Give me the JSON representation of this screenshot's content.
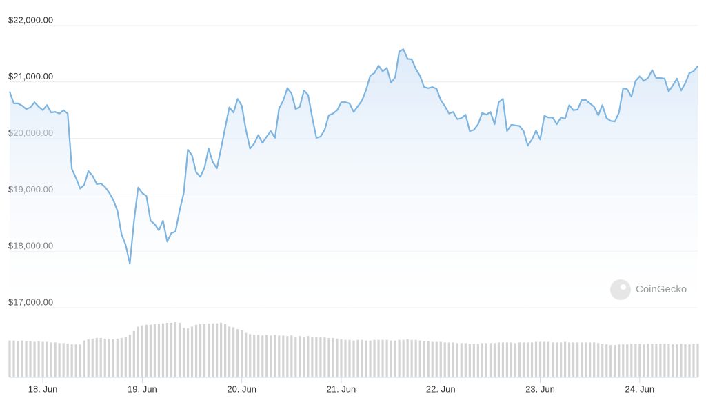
{
  "chart_data": {
    "type": "line",
    "watermark": "CoinGecko",
    "categories": [
      null,
      null,
      null,
      null,
      null,
      null,
      null,
      null,
      "18. Jun",
      null,
      null,
      null,
      null,
      null,
      null,
      null,
      null,
      null,
      null,
      null,
      null,
      null,
      null,
      null,
      null,
      null,
      null,
      null,
      null,
      null,
      null,
      null,
      "19. Jun",
      null,
      null,
      null,
      null,
      null,
      null,
      null,
      null,
      null,
      null,
      null,
      null,
      null,
      null,
      null,
      null,
      null,
      null,
      null,
      null,
      null,
      null,
      null,
      "20. Jun",
      null,
      null,
      null,
      null,
      null,
      null,
      null,
      null,
      null,
      null,
      null,
      null,
      null,
      null,
      null,
      null,
      null,
      null,
      null,
      null,
      null,
      null,
      null,
      "21. Jun",
      null,
      null,
      null,
      null,
      null,
      null,
      null,
      null,
      null,
      null,
      null,
      null,
      null,
      null,
      null,
      null,
      null,
      null,
      null,
      null,
      null,
      null,
      null,
      "22. Jun",
      null,
      null,
      null,
      null,
      null,
      null,
      null,
      null,
      null,
      null,
      null,
      null,
      null,
      null,
      null,
      null,
      null,
      null,
      null,
      null,
      null,
      null,
      null,
      "23. Jun",
      null,
      null,
      null,
      null,
      null,
      null,
      null,
      null,
      null,
      null,
      null,
      null,
      null,
      null,
      null,
      null,
      null,
      null,
      null,
      null,
      null,
      null,
      null,
      "24. Jun",
      null,
      null,
      null,
      null,
      null,
      null,
      null,
      null,
      null,
      null,
      null,
      null,
      null,
      null
    ],
    "series": [
      {
        "color": "#7db4e0",
        "values": [
          20830,
          20620,
          20620,
          20580,
          20520,
          20550,
          20640,
          20560,
          20500,
          20590,
          20460,
          20470,
          20440,
          20500,
          20440,
          19460,
          19300,
          19110,
          19180,
          19420,
          19340,
          19190,
          19200,
          19140,
          19040,
          18910,
          18720,
          18300,
          18110,
          17780,
          18540,
          19130,
          19030,
          18980,
          18540,
          18480,
          18370,
          18540,
          18170,
          18320,
          18350,
          18720,
          19030,
          19800,
          19700,
          19400,
          19320,
          19480,
          19820,
          19580,
          19470,
          19820,
          20190,
          20550,
          20460,
          20700,
          20580,
          20150,
          19820,
          19910,
          20060,
          19920,
          20030,
          20130,
          20010,
          20530,
          20670,
          20890,
          20800,
          20520,
          20560,
          20850,
          20770,
          20370,
          20010,
          20030,
          20150,
          20410,
          20440,
          20500,
          20640,
          20640,
          20620,
          20470,
          20570,
          20670,
          20860,
          21110,
          21160,
          21290,
          21190,
          21250,
          20990,
          21080,
          21540,
          21580,
          21410,
          21400,
          21230,
          21110,
          20910,
          20890,
          20910,
          20880,
          20680,
          20570,
          20440,
          20470,
          20340,
          20360,
          20420,
          20130,
          20150,
          20250,
          20450,
          20420,
          20470,
          20250,
          20640,
          20700,
          20130,
          20240,
          20230,
          20220,
          20130,
          19870,
          19980,
          20140,
          19980,
          20400,
          20370,
          20370,
          20250,
          20370,
          20350,
          20590,
          20500,
          20510,
          20680,
          20680,
          20620,
          20560,
          20410,
          20590,
          20360,
          20310,
          20300,
          20460,
          20890,
          20870,
          20740,
          21020,
          21100,
          21020,
          21070,
          21210,
          21070,
          21070,
          21060,
          20830,
          20940,
          21060,
          20850,
          20980,
          21160,
          21190,
          21280
        ]
      },
      {
        "type": "bar",
        "axis": "y2",
        "color": "#d4d4d4",
        "values": [
          58,
          58,
          57,
          58,
          57,
          57,
          56,
          57,
          56,
          56,
          55,
          55,
          54,
          54,
          53,
          52,
          52,
          52,
          58,
          60,
          61,
          62,
          62,
          61,
          61,
          60,
          61,
          62,
          64,
          67,
          73,
          80,
          82,
          83,
          83,
          84,
          84,
          85,
          86,
          86,
          87,
          86,
          78,
          77,
          80,
          83,
          84,
          84,
          85,
          85,
          85,
          86,
          84,
          80,
          79,
          76,
          74,
          70,
          68,
          67,
          67,
          66,
          67,
          66,
          67,
          66,
          66,
          65,
          66,
          64,
          65,
          64,
          65,
          64,
          64,
          63,
          63,
          62,
          62,
          61,
          60,
          59,
          59,
          58,
          59,
          59,
          58,
          58,
          59,
          59,
          59,
          59,
          58,
          58,
          59,
          59,
          60,
          59,
          59,
          58,
          57,
          57,
          56,
          56,
          56,
          55,
          55,
          55,
          54,
          54,
          54,
          53,
          53,
          53,
          54,
          54,
          54,
          54,
          55,
          55,
          55,
          55,
          54,
          55,
          55,
          55,
          55,
          56,
          56,
          56,
          56,
          55,
          55,
          55,
          56,
          55,
          55,
          55,
          55,
          55,
          55,
          55,
          54,
          53,
          52,
          51,
          51,
          52,
          52,
          52,
          53,
          53,
          53,
          52,
          53,
          53,
          53,
          53,
          53,
          53,
          52,
          52,
          53,
          52,
          52,
          53,
          53
        ]
      }
    ],
    "ylim": [
      17000,
      22000
    ],
    "yticks": [
      {
        "value": 17000,
        "label": "$17,000.00"
      },
      {
        "value": 18000,
        "label": "$18,000.00"
      },
      {
        "value": 19000,
        "label": "$19,000.00"
      },
      {
        "value": 20000,
        "label": "$20,000.00"
      },
      {
        "value": 21000,
        "label": "$21,000.00"
      },
      {
        "value": 22000,
        "label": "$22,000.00"
      }
    ],
    "y2lim": [
      0,
      100
    ],
    "grid": true
  }
}
